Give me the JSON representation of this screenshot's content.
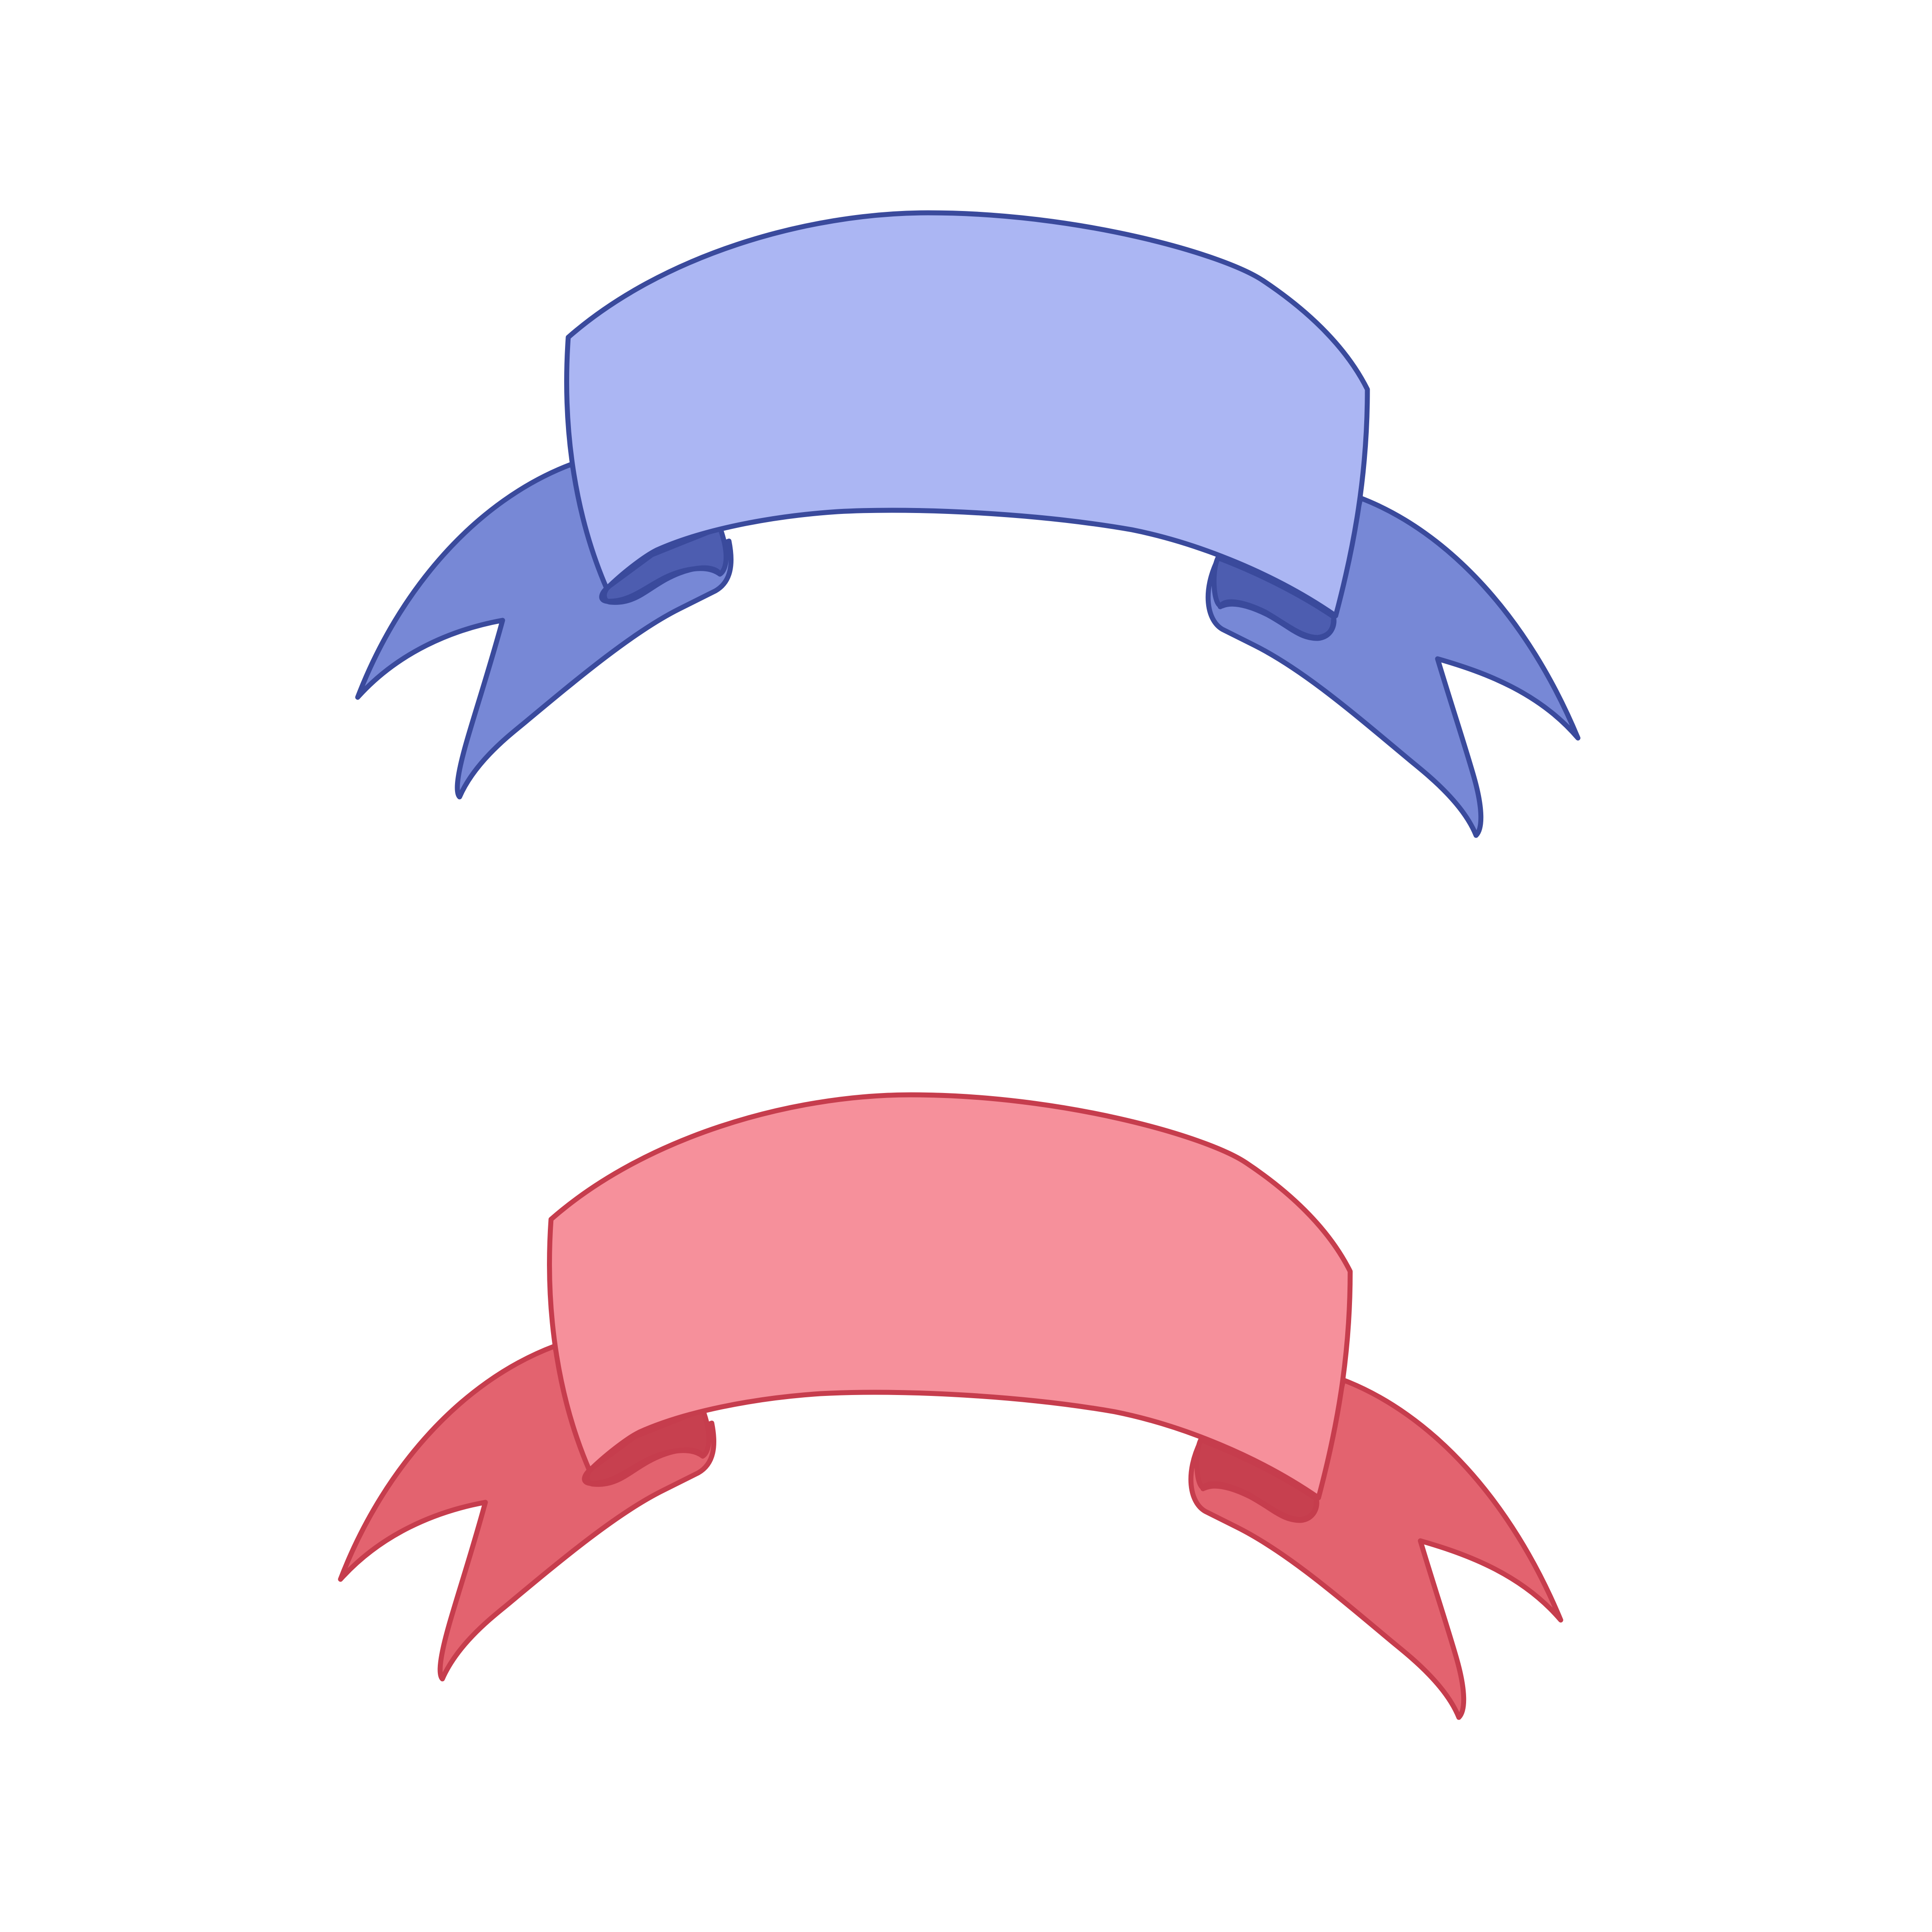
{
  "canvas": {
    "background": "#ffffff"
  },
  "banners": [
    {
      "name": "blue-ribbon-banner",
      "colors": {
        "stroke": "#3a4a9c",
        "main": "#abb6f3",
        "tails": "#7788d6",
        "folds": "#4d5db0"
      },
      "text": ""
    },
    {
      "name": "red-ribbon-banner",
      "colors": {
        "stroke": "#c63d4d",
        "main": "#f6909b",
        "tails": "#e3636f",
        "folds": "#c7404f"
      },
      "text": ""
    }
  ]
}
